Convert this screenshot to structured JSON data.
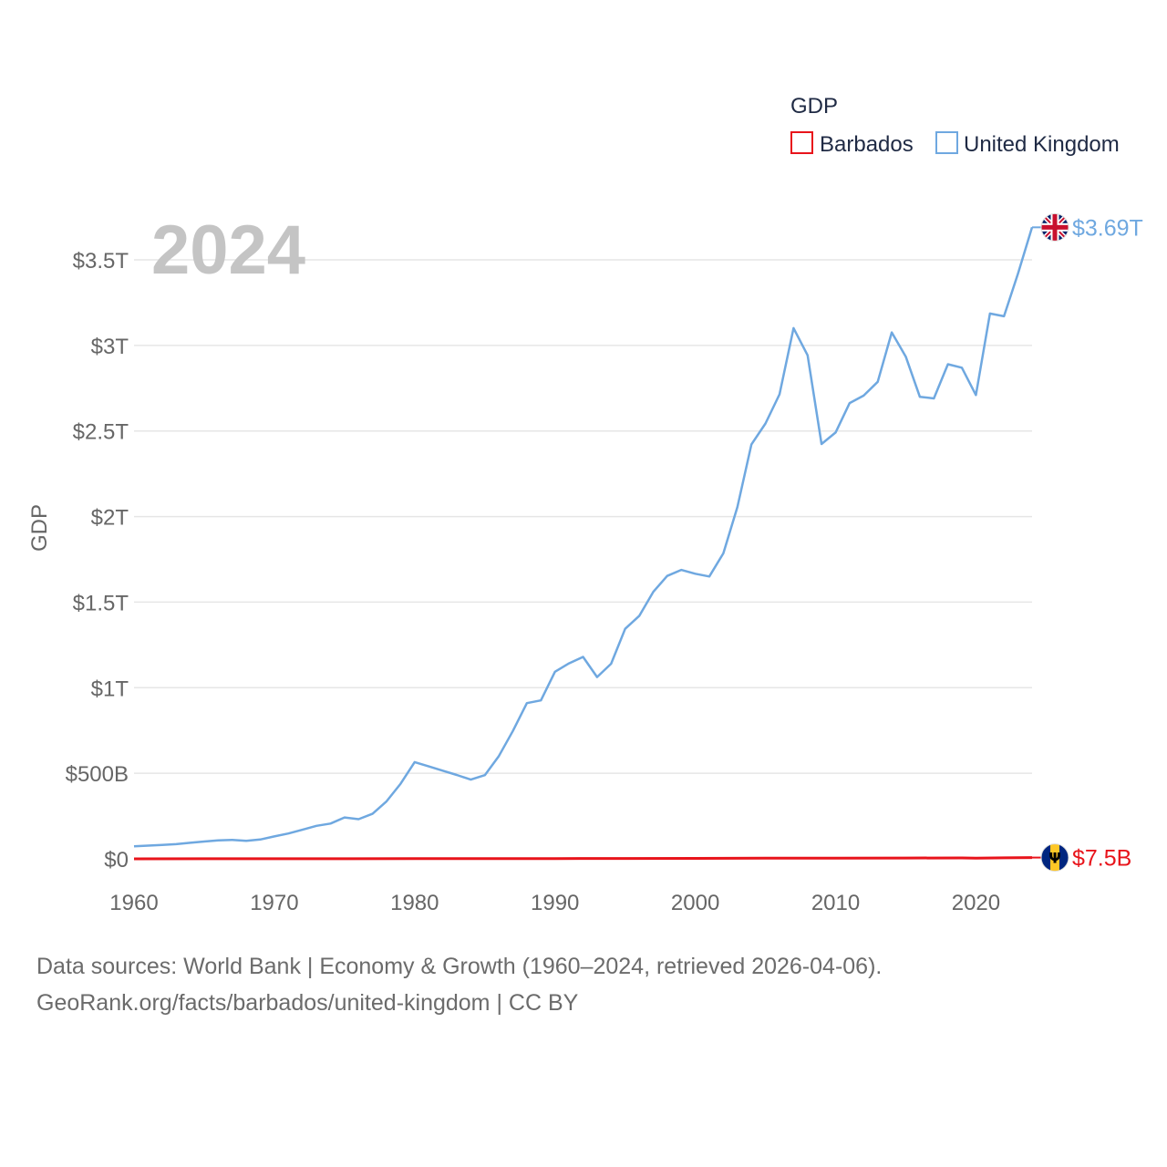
{
  "chart_data": {
    "type": "line",
    "legend_title": "GDP",
    "ylabel": "GDP",
    "year_label": "2024",
    "xlim": [
      1960,
      2024
    ],
    "ylim": [
      0,
      3.85
    ],
    "x_ticks": [
      {
        "value": 1960,
        "label": "1960"
      },
      {
        "value": 1970,
        "label": "1970"
      },
      {
        "value": 1980,
        "label": "1980"
      },
      {
        "value": 1990,
        "label": "1990"
      },
      {
        "value": 2000,
        "label": "2000"
      },
      {
        "value": 2010,
        "label": "2010"
      },
      {
        "value": 2020,
        "label": "2020"
      }
    ],
    "y_ticks": [
      {
        "value": 0,
        "label": "$0"
      },
      {
        "value": 0.5,
        "label": "$500B"
      },
      {
        "value": 1,
        "label": "$1T"
      },
      {
        "value": 1.5,
        "label": "$1.5T"
      },
      {
        "value": 2,
        "label": "$2T"
      },
      {
        "value": 2.5,
        "label": "$2.5T"
      },
      {
        "value": 3,
        "label": "$3T"
      },
      {
        "value": 3.5,
        "label": "$3.5T"
      }
    ],
    "series": [
      {
        "name": "Barbados",
        "color": "#e8141b",
        "end_label": "$7.5B",
        "flag": "barbados-flag",
        "x": [
          1960,
          1965,
          1970,
          1975,
          1980,
          1985,
          1990,
          1995,
          2000,
          2005,
          2010,
          2015,
          2019,
          2020,
          2022,
          2024
        ],
        "values": [
          0.0002,
          0.0003,
          0.0005,
          0.0007,
          0.0011,
          0.0014,
          0.0017,
          0.002,
          0.0027,
          0.0036,
          0.0045,
          0.0048,
          0.0053,
          0.0045,
          0.0057,
          0.0075
        ]
      },
      {
        "name": "United Kingdom",
        "color": "#6fa8e0",
        "end_label": "$3.69T",
        "flag": "united-kingdom-flag",
        "x": [
          1960,
          1961,
          1962,
          1963,
          1964,
          1965,
          1966,
          1967,
          1968,
          1969,
          1970,
          1971,
          1972,
          1973,
          1974,
          1975,
          1976,
          1977,
          1978,
          1979,
          1980,
          1981,
          1982,
          1983,
          1984,
          1985,
          1986,
          1987,
          1988,
          1989,
          1990,
          1991,
          1992,
          1993,
          1994,
          1995,
          1996,
          1997,
          1998,
          1999,
          2000,
          2001,
          2002,
          2003,
          2004,
          2005,
          2006,
          2007,
          2008,
          2009,
          2010,
          2011,
          2012,
          2013,
          2014,
          2015,
          2016,
          2017,
          2018,
          2019,
          2020,
          2021,
          2022,
          2023,
          2024
        ],
        "values": [
          0.073,
          0.077,
          0.081,
          0.086,
          0.094,
          0.101,
          0.108,
          0.111,
          0.105,
          0.113,
          0.131,
          0.148,
          0.17,
          0.193,
          0.206,
          0.242,
          0.232,
          0.263,
          0.336,
          0.439,
          0.565,
          0.54,
          0.515,
          0.49,
          0.463,
          0.489,
          0.601,
          0.747,
          0.91,
          0.926,
          1.093,
          1.142,
          1.18,
          1.062,
          1.14,
          1.344,
          1.419,
          1.56,
          1.653,
          1.688,
          1.666,
          1.65,
          1.785,
          2.056,
          2.422,
          2.544,
          2.714,
          3.101,
          2.942,
          2.424,
          2.491,
          2.663,
          2.707,
          2.787,
          3.076,
          2.934,
          2.7,
          2.69,
          2.89,
          2.87,
          2.71,
          3.186,
          3.17,
          3.42,
          3.69
        ]
      }
    ]
  },
  "source": {
    "line1": "Data sources: World Bank | Economy & Growth (1960–2024, retrieved 2026-04-06).",
    "line2": "GeoRank.org/facts/barbados/united-kingdom | CC BY"
  }
}
